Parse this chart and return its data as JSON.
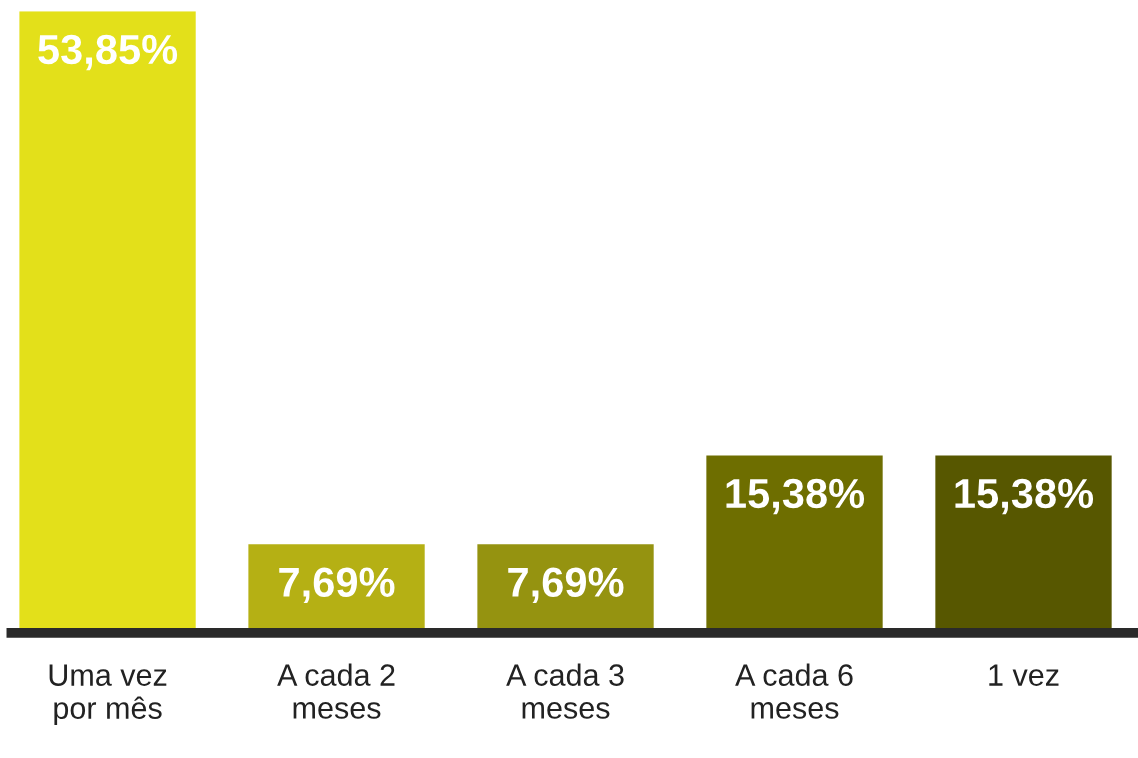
{
  "chart_data": {
    "type": "bar",
    "categories": [
      "Uma vez\npor mês",
      "A cada 2\nmeses",
      "A cada 3\nmeses",
      "A cada 6\nmeses",
      "1 vez"
    ],
    "values": [
      53.85,
      7.69,
      7.69,
      15.38,
      15.38
    ],
    "colors": [
      "#e3e01a",
      "#b5b014",
      "#959310",
      "#6e6e00",
      "#575700"
    ],
    "value_labels": [
      "53,85%",
      "7,69%",
      "7,69%",
      "15,38%",
      "15,38%"
    ],
    "grid": false,
    "legend": false
  }
}
